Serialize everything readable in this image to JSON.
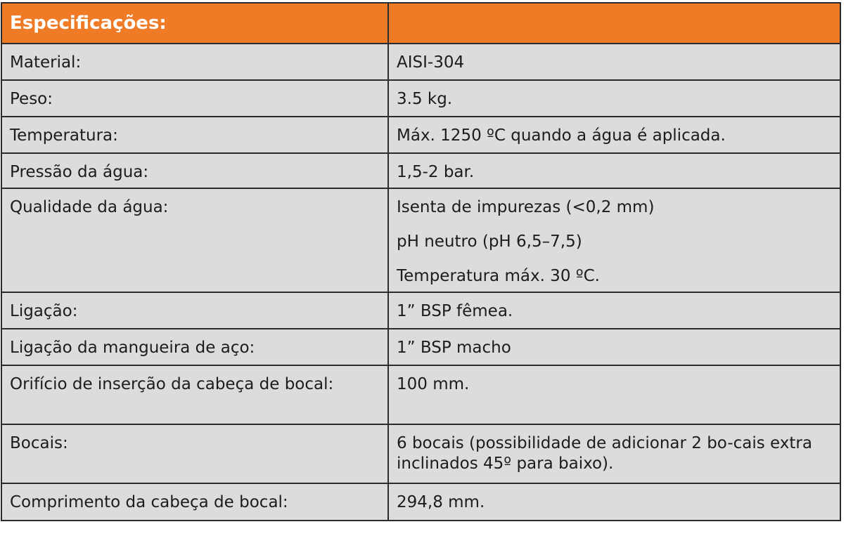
{
  "header": {
    "title": "Especificações:",
    "value": ""
  },
  "colors": {
    "header_bg": "#f07b26",
    "cell_bg": "#dcdcde",
    "border": "#2b2b2b"
  },
  "rows": [
    {
      "label": "Material:",
      "values": [
        "AISI-304"
      ]
    },
    {
      "label": "Peso:",
      "values": [
        "3.5 kg."
      ]
    },
    {
      "label": "Temperatura:",
      "values": [
        "Máx. 1250 ºC quando a água é aplicada."
      ]
    },
    {
      "label": "Pressão da água:",
      "values": [
        "1,5-2 bar."
      ]
    },
    {
      "label": "Qualidade da água:",
      "values": [
        "Isenta de impurezas (<0,2 mm)",
        "pH neutro (pH 6,5–7,5)",
        "Temperatura máx. 30 ºC."
      ]
    },
    {
      "label": "Ligação:",
      "values": [
        "1” BSP fêmea."
      ]
    },
    {
      "label": "Ligação da mangueira de aço:",
      "values": [
        "1” BSP macho"
      ]
    },
    {
      "label": "Orifício de inserção da cabeça de bocal:",
      "values": [
        "100 mm."
      ]
    },
    {
      "label": "Bocais:",
      "values": [
        "6 bocais (possibilidade de adicionar 2 bo-cais extra inclinados 45º para baixo)."
      ]
    },
    {
      "label": "Comprimento da cabeça de bocal:",
      "values": [
        "294,8 mm."
      ]
    }
  ]
}
